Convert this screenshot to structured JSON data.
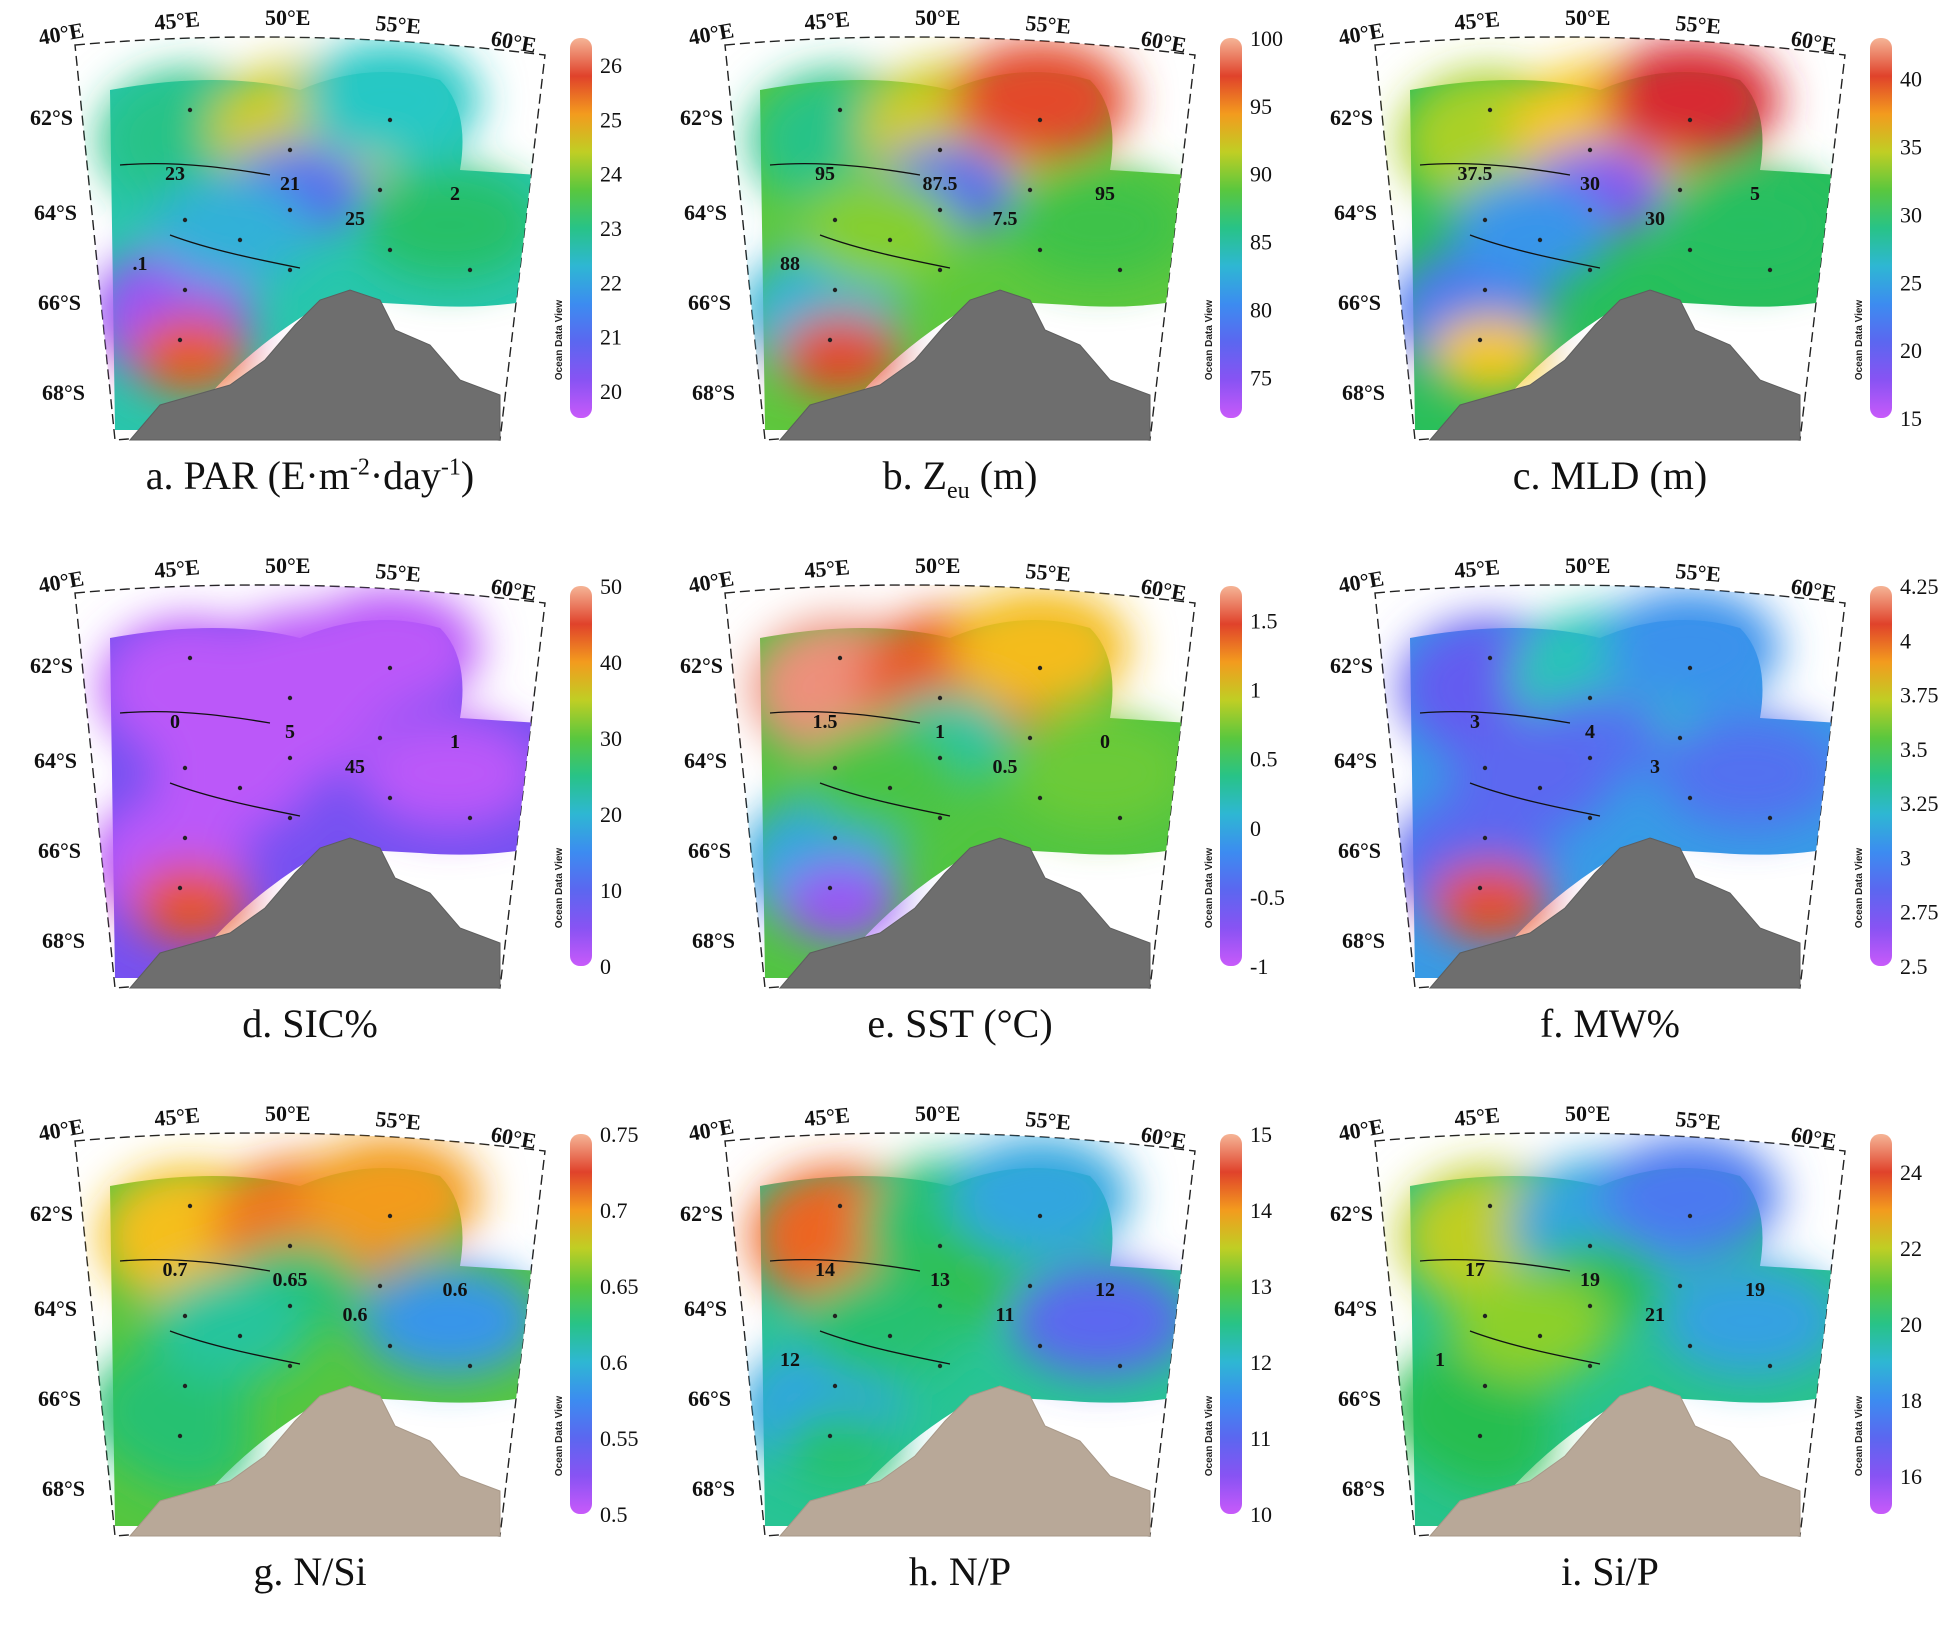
{
  "watermark": "Ocean Data View",
  "lon_labels": [
    "40°E",
    "45°E",
    "50°E",
    "55°E",
    "60°E"
  ],
  "lat_labels": [
    "62°S",
    "64°S",
    "66°S",
    "68°S"
  ],
  "panels": [
    {
      "id": "a",
      "caption_main": "a. PAR (E·m",
      "caption_sup1": "-2",
      "caption_mid": "·day",
      "caption_sup2": "-1",
      "caption_end": ")",
      "colorbar": {
        "min": 19.5,
        "max": 26.5,
        "ticks": [
          "26",
          "25",
          "24",
          "23",
          "22",
          "21",
          "20"
        ],
        "tick_values": [
          26,
          25,
          24,
          23,
          22,
          21,
          20
        ]
      },
      "blobs": [
        {
          "v": 23.0
        },
        {
          "v": 24.5
        },
        {
          "v": 22.6
        },
        {
          "v": 21.0
        },
        {
          "v": 20.0
        },
        {
          "v": 25.6
        },
        {
          "v": 23.2
        },
        {
          "v": 22.2
        }
      ],
      "contour_labels": [
        "23",
        "21",
        "25",
        "2",
        ".1"
      ]
    },
    {
      "id": "b",
      "caption_main": "b.  Z",
      "caption_sub": "eu",
      "caption_end": " (m)",
      "colorbar": {
        "min": 72,
        "max": 100,
        "ticks": [
          "100",
          "95",
          "90",
          "85",
          "80",
          "75"
        ],
        "tick_values": [
          100,
          95,
          90,
          85,
          80,
          75
        ]
      },
      "blobs": [
        {
          "v": 86
        },
        {
          "v": 92
        },
        {
          "v": 97
        },
        {
          "v": 78
        },
        {
          "v": 83
        },
        {
          "v": 97
        },
        {
          "v": 88
        },
        {
          "v": 90
        }
      ],
      "contour_labels": [
        "95",
        "87.5",
        "7.5",
        "95",
        "88"
      ]
    },
    {
      "id": "c",
      "caption_main": "c. MLD (m)",
      "colorbar": {
        "min": 15,
        "max": 43,
        "ticks": [
          "40",
          "35",
          "30",
          "25",
          "20",
          "15"
        ],
        "tick_values": [
          40,
          35,
          30,
          25,
          20,
          15
        ]
      },
      "blobs": [
        {
          "v": 34
        },
        {
          "v": 36
        },
        {
          "v": 41
        },
        {
          "v": 18
        },
        {
          "v": 22
        },
        {
          "v": 36
        },
        {
          "v": 30
        },
        {
          "v": 24
        }
      ],
      "contour_labels": [
        "37.5",
        "30",
        "30",
        "5"
      ]
    },
    {
      "id": "d",
      "caption_main": "d. SIC%",
      "colorbar": {
        "min": 0,
        "max": 50,
        "ticks": [
          "50",
          "40",
          "30",
          "20",
          "10",
          "0"
        ],
        "tick_values": [
          50,
          40,
          30,
          20,
          10,
          0
        ]
      },
      "blobs": [
        {
          "v": 1
        },
        {
          "v": 1
        },
        {
          "v": 1
        },
        {
          "v": 1
        },
        {
          "v": 1
        },
        {
          "v": 44
        },
        {
          "v": 1
        },
        {
          "v": 1
        }
      ],
      "contour_labels": [
        "0",
        "5",
        "45",
        "1"
      ]
    },
    {
      "id": "e",
      "caption_main": "e. SST (°C)",
      "colorbar": {
        "min": -1,
        "max": 1.75,
        "ticks": [
          "1.5",
          "1",
          "0.5",
          "0",
          "-0.5",
          "-1"
        ],
        "tick_values": [
          1.5,
          1,
          0.5,
          0,
          -0.5,
          -1
        ]
      },
      "blobs": [
        {
          "v": 1.7
        },
        {
          "v": 1.4
        },
        {
          "v": 1.1
        },
        {
          "v": 0.3
        },
        {
          "v": 0.0
        },
        {
          "v": -0.8
        },
        {
          "v": 0.7
        },
        {
          "v": 0.6
        }
      ],
      "contour_labels": [
        "1.5",
        "1",
        "0.5",
        "0"
      ]
    },
    {
      "id": "f",
      "caption_main": "f. MW%",
      "colorbar": {
        "min": 2.5,
        "max": 4.25,
        "ticks": [
          "4.25",
          "4",
          "3.75",
          "3.5",
          "3.25",
          "3",
          "2.75",
          "2.5"
        ],
        "tick_values": [
          4.25,
          4,
          3.75,
          3.5,
          3.25,
          3,
          2.75,
          2.5
        ]
      },
      "blobs": [
        {
          "v": 2.8
        },
        {
          "v": 3.3
        },
        {
          "v": 3.05
        },
        {
          "v": 2.9
        },
        {
          "v": 2.85
        },
        {
          "v": 4.05
        },
        {
          "v": 2.9
        },
        {
          "v": 2.85
        }
      ],
      "contour_labels": [
        "3",
        "4",
        "3"
      ]
    },
    {
      "id": "g",
      "caption_main": "g. N/Si",
      "colorbar": {
        "min": 0.5,
        "max": 0.75,
        "ticks": [
          "0.75",
          "0.7",
          "0.65",
          "0.6",
          "0.55",
          "0.5"
        ],
        "tick_values": [
          0.75,
          0.7,
          0.65,
          0.6,
          0.55,
          0.5
        ]
      },
      "blobs": [
        {
          "v": 0.69
        },
        {
          "v": 0.71
        },
        {
          "v": 0.7
        },
        {
          "v": 0.63
        },
        {
          "v": 0.63
        },
        {
          "v": 0.63
        },
        {
          "v": 0.58
        },
        {
          "v": 0.62
        }
      ],
      "contour_labels": [
        "0.7",
        "0.65",
        "0.6",
        "0.6"
      ]
    },
    {
      "id": "h",
      "caption_main": "h. N/P",
      "colorbar": {
        "min": 10,
        "max": 15,
        "ticks": [
          "15",
          "14",
          "13",
          "12",
          "11",
          "10"
        ],
        "tick_values": [
          15,
          14,
          13,
          12,
          11,
          10
        ]
      },
      "blobs": [
        {
          "v": 14.3
        },
        {
          "v": 12.6
        },
        {
          "v": 11.8
        },
        {
          "v": 12.8
        },
        {
          "v": 11.8
        },
        {
          "v": 12.6
        },
        {
          "v": 11.0
        },
        {
          "v": 12.6
        }
      ],
      "contour_labels": [
        "14",
        "13",
        "11",
        "12",
        "12"
      ]
    },
    {
      "id": "i",
      "caption_main": "i. Si/P",
      "colorbar": {
        "min": 15,
        "max": 25,
        "ticks": [
          "24",
          "22",
          "20",
          "18",
          "16"
        ],
        "tick_values": [
          24,
          22,
          20,
          18,
          16
        ]
      },
      "blobs": [
        {
          "v": 22
        },
        {
          "v": 18.6
        },
        {
          "v": 17.5
        },
        {
          "v": 20.5
        },
        {
          "v": 20.5
        },
        {
          "v": 20.5
        },
        {
          "v": 18.5
        },
        {
          "v": 21.5
        }
      ],
      "contour_labels": [
        "17",
        "19",
        "21",
        "19",
        "1"
      ]
    }
  ]
}
